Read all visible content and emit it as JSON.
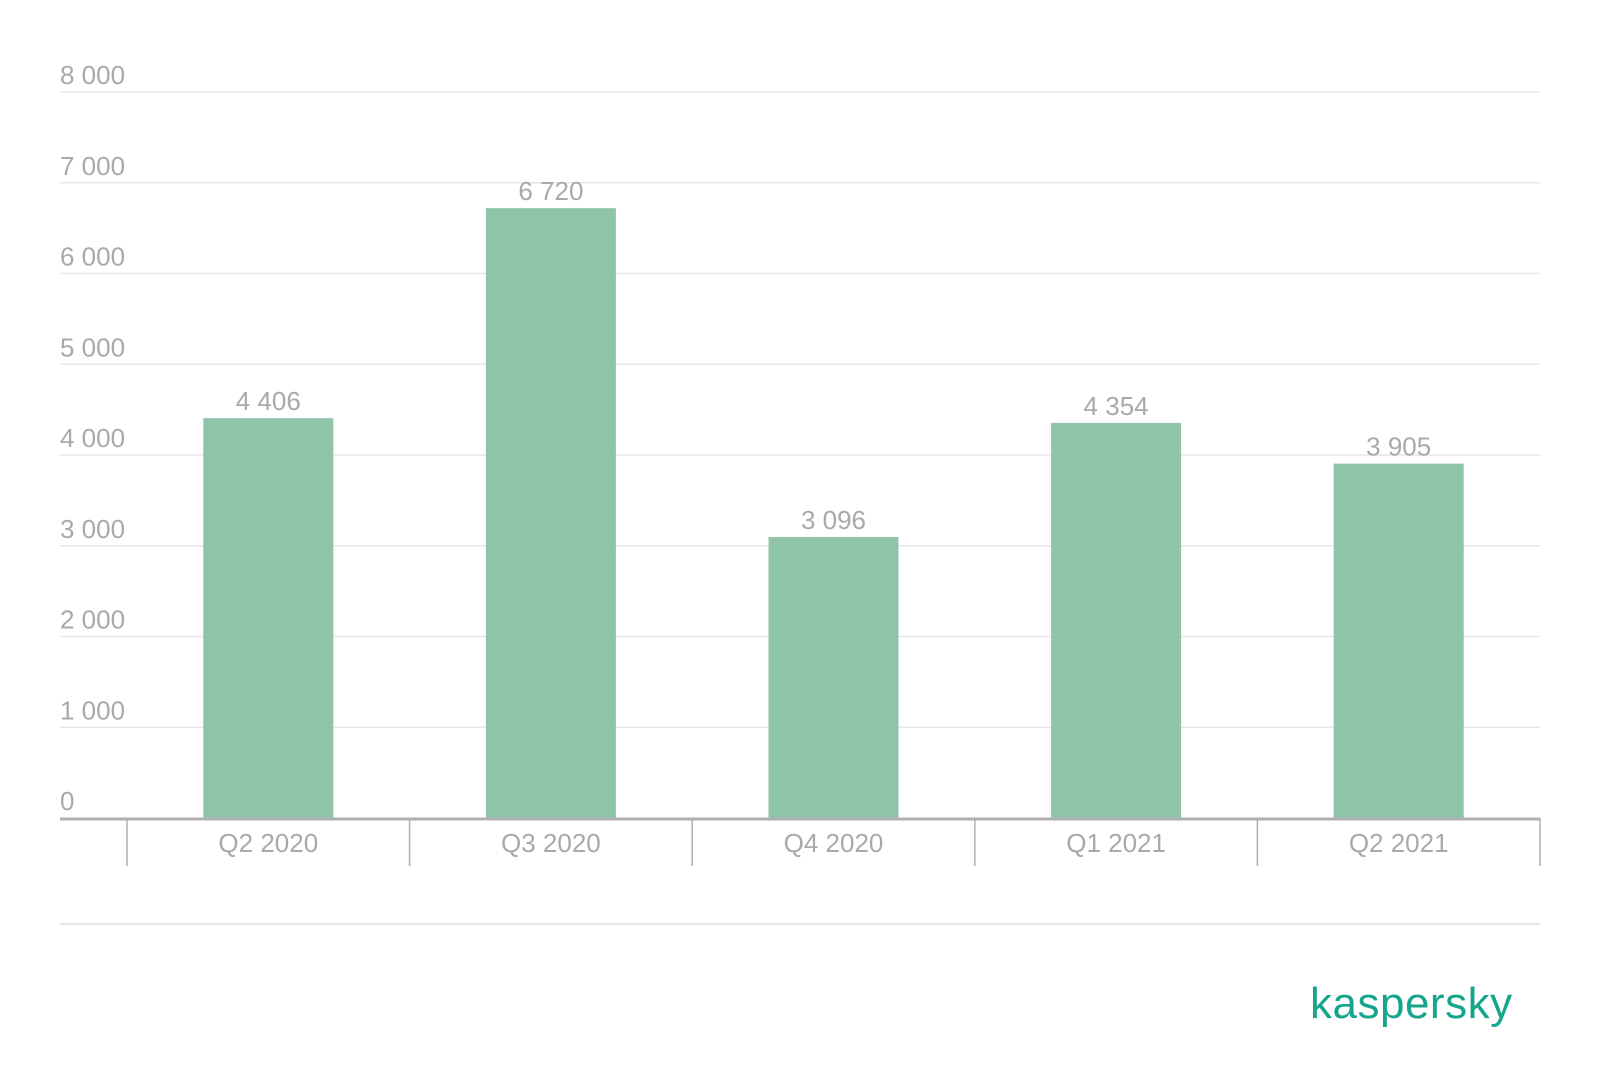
{
  "chart_data": {
    "type": "bar",
    "title": "",
    "xlabel": "",
    "ylabel": "",
    "categories": [
      "Q2 2020",
      "Q3 2020",
      "Q4 2020",
      "Q1 2021",
      "Q2 2021"
    ],
    "values": [
      4406,
      6720,
      3096,
      4354,
      3905
    ],
    "value_labels": [
      "4 406",
      "6 720",
      "3 096",
      "4 354",
      "3 905"
    ],
    "ylim": [
      0,
      8000
    ],
    "yticks": [
      0,
      1000,
      2000,
      3000,
      4000,
      5000,
      6000,
      7000,
      8000
    ],
    "ytick_labels": [
      "0",
      "1 000",
      "2 000",
      "3 000",
      "4 000",
      "5 000",
      "6 000",
      "7 000",
      "8 000"
    ],
    "grid": true,
    "legend": "none"
  },
  "brand": {
    "name": "kaspersky"
  },
  "colors": {
    "bar": "#90c4a8",
    "gridline": "#e6e6e6",
    "axis": "#b0b0b0",
    "label_text": "#a9a9a9",
    "brand": "#14a58c"
  }
}
